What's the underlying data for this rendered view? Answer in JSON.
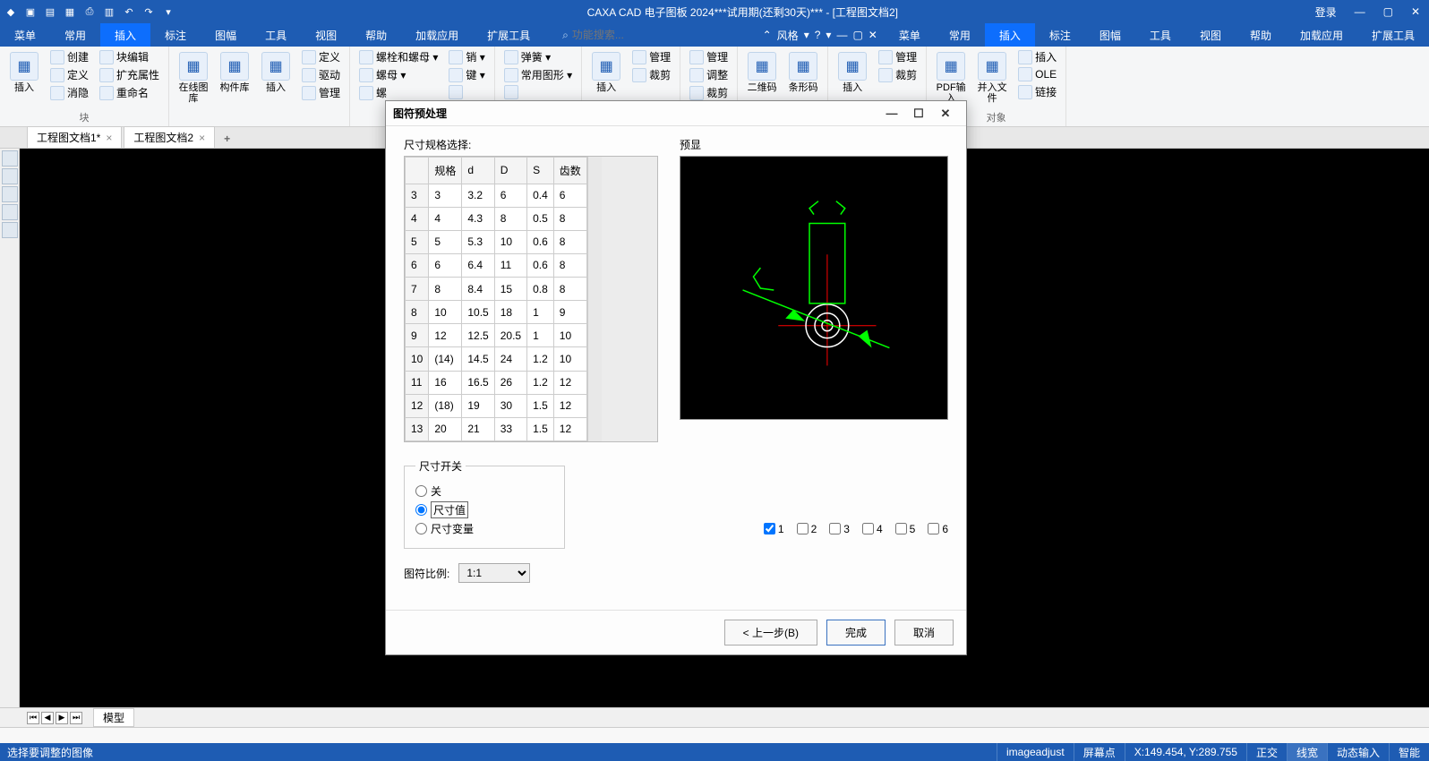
{
  "titlebar": {
    "title": "CAXA CAD 电子图板 2024***试用期(还剩30天)*** - [工程图文档2]",
    "login": "登录"
  },
  "menu": {
    "items": [
      "菜单",
      "常用",
      "插入",
      "标注",
      "图幅",
      "工具",
      "视图",
      "帮助",
      "加载应用",
      "扩展工具"
    ],
    "active_index": 2,
    "search_placeholder": "功能搜索...",
    "style_label": "风格"
  },
  "ribbon": {
    "groups": [
      {
        "label": "块",
        "big": [
          {
            "txt": "插入"
          }
        ],
        "cols": [
          [
            "创建",
            "定义",
            "消隐"
          ],
          [
            "块编辑",
            "扩充属性",
            "重命名"
          ]
        ]
      },
      {
        "label": "",
        "big": [
          {
            "txt": "在线图库"
          },
          {
            "txt": "构件库"
          },
          {
            "txt": "插入"
          }
        ],
        "cols": [
          [
            "定义",
            "驱动",
            "管理"
          ]
        ]
      },
      {
        "label": "",
        "big": [],
        "cols": [
          [
            "螺栓和螺母 ▾",
            "螺母 ▾",
            "螺"
          ],
          [
            "销 ▾",
            "键 ▾",
            ""
          ]
        ]
      },
      {
        "label": "",
        "big": [],
        "cols": [
          [
            "弹簧 ▾",
            "常用图形 ▾",
            ""
          ]
        ]
      },
      {
        "label": "",
        "big": [
          {
            "txt": "插入"
          }
        ],
        "cols": [
          [
            "管理",
            "裁剪"
          ]
        ]
      },
      {
        "label": "",
        "big": [],
        "cols": [
          [
            "管理",
            "调整",
            "裁剪"
          ]
        ]
      },
      {
        "label": "",
        "big": [
          {
            "txt": "二维码"
          },
          {
            "txt": "条形码"
          }
        ],
        "cols": []
      },
      {
        "label": "",
        "big": [
          {
            "txt": "插入"
          }
        ],
        "cols": [
          [
            "管理",
            "裁剪"
          ]
        ]
      },
      {
        "label": "对象",
        "big": [
          {
            "txt": "PDF输入"
          },
          {
            "txt": "并入文件"
          }
        ],
        "cols": [
          [
            "插入",
            "OLE",
            "链接"
          ]
        ]
      }
    ]
  },
  "doctabs": {
    "tabs": [
      "工程图文档1*",
      "工程图文档2"
    ]
  },
  "dialog": {
    "title": "图符预处理",
    "table_label": "尺寸规格选择:",
    "preview_label": "预显",
    "columns": [
      "",
      "规格",
      "d",
      "D",
      "S",
      "齿数"
    ],
    "rows": [
      [
        "3",
        "3",
        "3.2",
        "6",
        "0.4",
        "6"
      ],
      [
        "4",
        "4",
        "4.3",
        "8",
        "0.5",
        "8"
      ],
      [
        "5",
        "5",
        "5.3",
        "10",
        "0.6",
        "8"
      ],
      [
        "6",
        "6",
        "6.4",
        "11",
        "0.6",
        "8"
      ],
      [
        "7",
        "8",
        "8.4",
        "15",
        "0.8",
        "8"
      ],
      [
        "8",
        "10",
        "10.5",
        "18",
        "1",
        "9"
      ],
      [
        "9",
        "12",
        "12.5",
        "20.5",
        "1",
        "10"
      ],
      [
        "10",
        "(14)",
        "14.5",
        "24",
        "1.2",
        "10"
      ],
      [
        "11",
        "16",
        "16.5",
        "26",
        "1.2",
        "12"
      ],
      [
        "12",
        "(18)",
        "19",
        "30",
        "1.5",
        "12"
      ],
      [
        "13",
        "20",
        "21",
        "33",
        "1.5",
        "12"
      ]
    ],
    "switch_legend": "尺寸开关",
    "radio_off": "关",
    "radio_value": "尺寸值",
    "radio_var": "尺寸变量",
    "checks": [
      "1",
      "2",
      "3",
      "4",
      "5",
      "6"
    ],
    "checked_index": 0,
    "scale_label": "图符比例:",
    "scale_value": "1:1",
    "btn_back": "< 上一步(B)",
    "btn_finish": "完成",
    "btn_cancel": "取消"
  },
  "bottom": {
    "model_tab": "模型"
  },
  "cmd": {
    "text": ""
  },
  "status": {
    "left": "选择要调整的图像",
    "cmd": "imageadjust",
    "screen": "屏幕点",
    "coords": "X:149.454, Y:289.755",
    "ortho": "正交",
    "linew": "线宽",
    "dyn": "动态输入",
    "smart": "智能"
  },
  "colors": {
    "accent": "#1e5cb3",
    "green": "#00ff00",
    "red": "#ff0000"
  }
}
